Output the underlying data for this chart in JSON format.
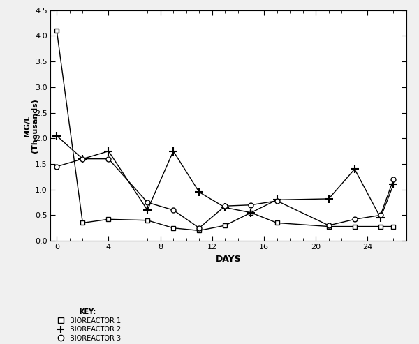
{
  "title": "",
  "xlabel": "DAYS",
  "ylabel": "MG/L\n(Thousands)",
  "xlim": [
    -0.5,
    27
  ],
  "ylim": [
    0,
    4.5
  ],
  "xticks": [
    0,
    4,
    8,
    12,
    16,
    20,
    24
  ],
  "yticks": [
    0,
    0.5,
    1.0,
    1.5,
    2.0,
    2.5,
    3.0,
    3.5,
    4.0,
    4.5
  ],
  "bioreactor1": {
    "x": [
      0,
      2,
      4,
      7,
      9,
      11,
      13,
      15,
      17,
      21,
      23,
      25,
      26
    ],
    "y": [
      4.1,
      0.35,
      0.42,
      0.4,
      0.25,
      0.2,
      0.3,
      0.55,
      0.35,
      0.28,
      0.28,
      0.28,
      0.28
    ],
    "marker": "s",
    "label": "BIOREACTOR 1",
    "markersize": 5
  },
  "bioreactor2": {
    "x": [
      0,
      2,
      4,
      7,
      9,
      11,
      13,
      15,
      17,
      21,
      23,
      25,
      26
    ],
    "y": [
      2.05,
      1.6,
      1.75,
      0.6,
      1.75,
      0.95,
      0.65,
      0.55,
      0.8,
      0.82,
      1.4,
      0.45,
      1.1
    ],
    "marker": "+",
    "label": "BIOREACTOR 2",
    "markersize": 8
  },
  "bioreactor3": {
    "x": [
      0,
      2,
      4,
      7,
      9,
      11,
      13,
      15,
      17,
      21,
      23,
      25,
      26
    ],
    "y": [
      1.45,
      1.6,
      1.6,
      0.75,
      0.6,
      0.25,
      0.68,
      0.7,
      0.78,
      0.3,
      0.42,
      0.5,
      1.2
    ],
    "marker": "o",
    "label": "BIOREACTOR 3",
    "markersize": 5
  },
  "background_color": "#f0f0f0",
  "plot_bg_color": "#ffffff",
  "key_title": "KEY:",
  "legend_labels": [
    "BIOREACTOR 1",
    "BIOREACTOR 2",
    "BIOREACTOR 3"
  ]
}
